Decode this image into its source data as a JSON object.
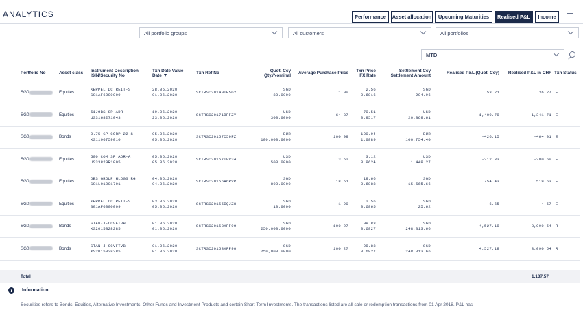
{
  "header": {
    "title": "ANALYTICS",
    "tabs": [
      {
        "label": "Performance"
      },
      {
        "label": "Asset allocation"
      },
      {
        "label": "Upcoming Maturities"
      },
      {
        "label": "Realised P&L"
      },
      {
        "label": "Income"
      }
    ]
  },
  "filters": {
    "portfolio_groups": "All portfolio groups",
    "customers": "All customers",
    "portfolios": "All portfolios",
    "period": "MTD"
  },
  "table": {
    "columns": {
      "portfolio_no": "Portfolio No",
      "asset_class": "Asset class",
      "instrument": "Instrument Description ISIN/Security No",
      "txn_date": "Txn Date Value Date",
      "txn_ref": "Txn Ref No",
      "quot_ccy": "Quot. Ccy Qty./Nominal",
      "avg_price": "Average Purchase Price",
      "txn_price": "Txn Price FX Rate",
      "settle": "Settlement Ccy Settlement Amount",
      "pl_quot": "Realised P&L (Quot. Ccy)",
      "pl_chf": "Realised P&L in CHF",
      "status": "Txn Status"
    },
    "rows": [
      {
        "portfolio": "SG0",
        "asset": "Equities",
        "instr1": "KEPPEL DC REIT-S",
        "instr2": "SG1AF6000009",
        "date1": "28.05.2020",
        "date2": "01.06.2020",
        "ref": "SCTRSC20149TH5G2",
        "ccy": "SGD",
        "qty": "80.0000",
        "avg": "1.90",
        "price": "2.56",
        "fx": "0.6816",
        "sccy": "SGD",
        "samt": "204.96",
        "plq": "53.21",
        "plc": "36.27",
        "status": "E"
      },
      {
        "portfolio": "SG0",
        "asset": "Equities",
        "instr1": "51JOBS SP ADR",
        "instr2": "US3168271043",
        "date1": "19.06.2020",
        "date2": "23.06.2020",
        "ref": "SCTRSC20171BFFZY",
        "ccy": "USD",
        "qty": "300.0000",
        "avg": "64.87",
        "price": "70.51",
        "fx": "0.9517",
        "sccy": "USD",
        "samt": "20.869.61",
        "plq": "1,409.78",
        "plc": "1,341.71",
        "status": "E"
      },
      {
        "portfolio": "SG0",
        "asset": "Bonds",
        "instr1": "0.75 GP CORP 22-S",
        "instr2": "XS1196759010",
        "date1": "05.06.2020",
        "date2": "05.06.2020",
        "ref": "SCTRSC20157C59FZ",
        "ccy": "EUR",
        "qty": "100,000.0000",
        "avg": "100.99",
        "price": "100.94",
        "fx": "1.0889",
        "sccy": "EUR",
        "samt": "100,754.40",
        "plq": "-426.15",
        "plc": "-464.01",
        "status": "E"
      },
      {
        "portfolio": "SG0",
        "asset": "Equities",
        "instr1": "500.COM SP ADR-A",
        "instr2": "US33829R1005",
        "date1": "05.06.2020",
        "date2": "05.06.2020",
        "ref": "SCTRSC20157I0V34",
        "ccy": "USD",
        "qty": "500.0000",
        "avg": "3.52",
        "price": "3.12",
        "fx": "0.9624",
        "sccy": "USD",
        "samt": "1,448.27",
        "plq": "-312.33",
        "plc": "-300.60",
        "status": "E"
      },
      {
        "portfolio": "SG0",
        "asset": "Equities",
        "instr1": "DBS GROUP HLDGS RG",
        "instr2": "SG1L01001701",
        "date1": "04.06.2020",
        "date2": "04.06.2020",
        "ref": "SCTRSC20156A6PVP",
        "ccy": "SGD",
        "qty": "800.0000",
        "avg": "18.51",
        "price": "19.66",
        "fx": "0.6888",
        "sccy": "SGD",
        "samt": "15,565.66",
        "plq": "754.43",
        "plc": "519.63",
        "status": "E"
      },
      {
        "portfolio": "SG0",
        "asset": "Equities",
        "instr1": "KEPPEL DC REIT-S",
        "instr2": "SG1AF6000009",
        "date1": "03.06.2020",
        "date2": "05.06.2020",
        "ref": "SCTRSC20155IQJZ8",
        "ccy": "SGD",
        "qty": "10.0000",
        "avg": "1.90",
        "price": "2.56",
        "fx": "0.6865",
        "sccy": "SGD",
        "samt": "25.62",
        "plq": "6.65",
        "plc": "4.57",
        "status": "E"
      },
      {
        "portfolio": "SG0",
        "asset": "Bonds",
        "instr1": "STAN-J-CCVFTVB",
        "instr2": "XS2015828285",
        "date1": "01.06.2020",
        "date2": "01.06.2020",
        "ref": "SCTRSC20153XFF9O",
        "ccy": "SGD",
        "qty": "250,000.0000",
        "avg": "100.27",
        "price": "98.83",
        "fx": "0.6827",
        "sccy": "SGD",
        "samt": "248,313.66",
        "plq": "-4,527.18",
        "plc": "-3,090.54",
        "status": "R"
      },
      {
        "portfolio": "SG0",
        "asset": "Bonds",
        "instr1": "STAN-J-CCVFTVB",
        "instr2": "XS2015828285",
        "date1": "01.06.2020",
        "date2": "01.06.2020",
        "ref": "SCTRSC20153XFF9O",
        "ccy": "SGD",
        "qty": "250,000.0000",
        "avg": "100.27",
        "price": "98.83",
        "fx": "0.6827",
        "sccy": "SGD",
        "samt": "248,313.66",
        "plq": "4,527.18",
        "plc": "3,090.54",
        "status": "R"
      }
    ]
  },
  "total": {
    "label": "Total",
    "value": "1,137.57"
  },
  "info": {
    "title": "Information",
    "text": "Securities refers to Bonds, Equities, Alternative Investments, Other Funds and Investment Products and certain Short Term Investments. The transactions listed are all sale or redemption transactions from 01 Apr 2018. P&L has"
  }
}
